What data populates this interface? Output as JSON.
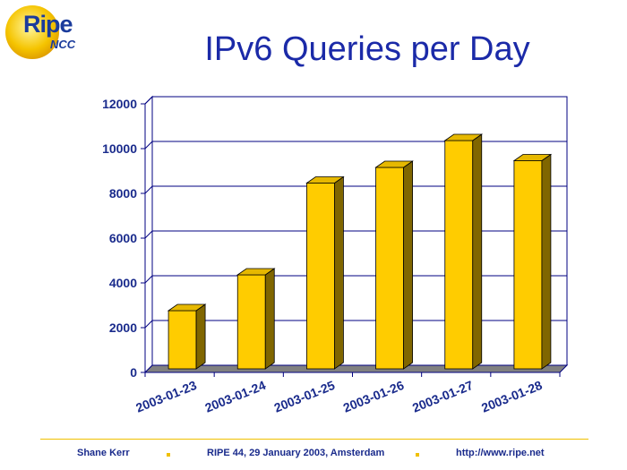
{
  "logo": {
    "word": "Ripe",
    "sub": "NCC"
  },
  "header": {
    "title": "IPv6 Queries per Day"
  },
  "chart_data": {
    "type": "bar",
    "categories": [
      "2003-01-23",
      "2003-01-24",
      "2003-01-25",
      "2003-01-26",
      "2003-01-27",
      "2003-01-28"
    ],
    "values": [
      2600,
      4200,
      8300,
      9000,
      10200,
      9300
    ],
    "title": "IPv6 Queries per Day",
    "xlabel": "",
    "ylabel": "",
    "ylim": [
      0,
      12000
    ],
    "yticks": [
      "0",
      "2000",
      "4000",
      "6000",
      "8000",
      "10000",
      "12000"
    ],
    "grid": true,
    "legend": "none",
    "bar_color": "#ffcc00",
    "side_color": "#806600",
    "floor_color": "#808080"
  },
  "footer": {
    "author": "Shane Kerr",
    "event": "RIPE 44, 29 January 2003, Amsterdam",
    "url": "http://www.ripe.net"
  }
}
